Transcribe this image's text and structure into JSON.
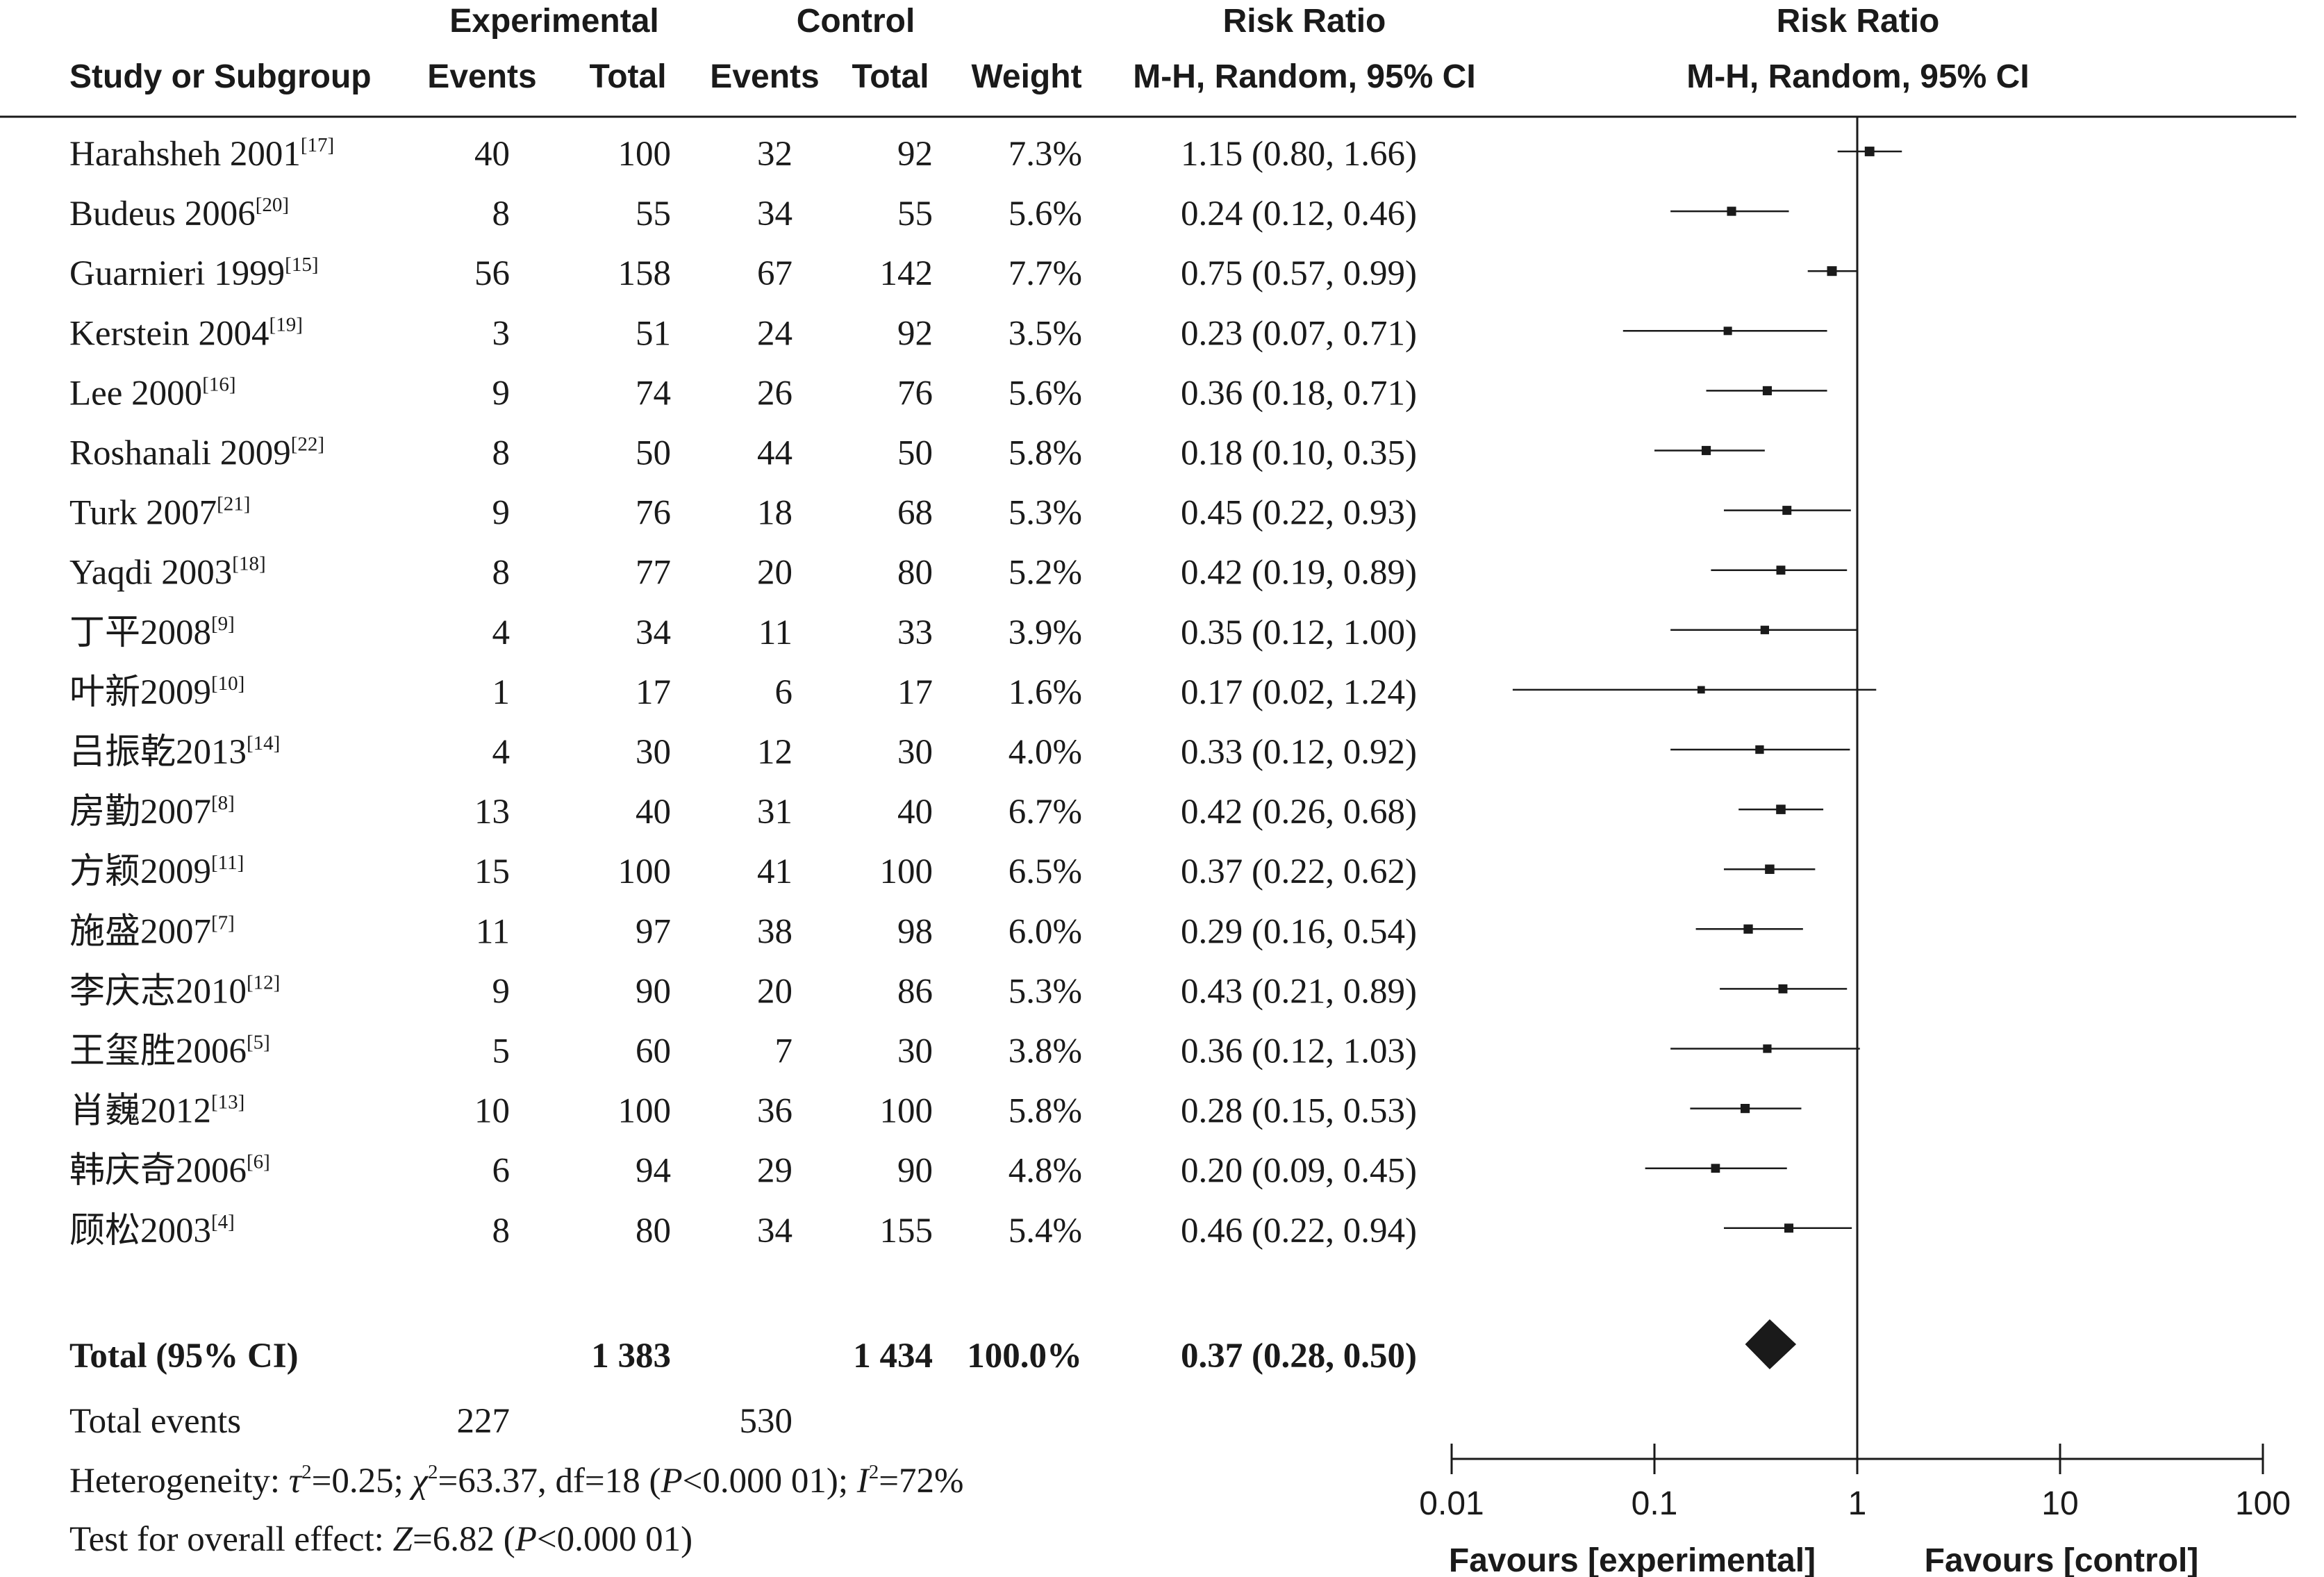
{
  "headers": {
    "group_experimental": "Experimental",
    "group_control": "Control",
    "group_rr_table": "Risk Ratio",
    "group_rr_plot": "Risk Ratio",
    "study": "Study or Subgroup",
    "exp_events": "Events",
    "exp_total": "Total",
    "ctl_events": "Events",
    "ctl_total": "Total",
    "weight": "Weight",
    "method_table": "M-H, Random, 95% CI",
    "method_plot": "M-H, Random, 95% CI"
  },
  "chart_data": {
    "type": "forest",
    "scale": "log",
    "xlim": [
      0.01,
      100
    ],
    "xticks": [
      "0.01",
      "0.1",
      "1",
      "10",
      "100"
    ],
    "x_left_label": "Favours [experimental]",
    "x_right_label": "Favours [control]",
    "studies": [
      {
        "name": "Harahsheh 2001",
        "ref": "[17]",
        "exp_events": "40",
        "exp_total": "100",
        "ctl_events": "32",
        "ctl_total": "92",
        "weight": "7.3%",
        "ci_text": "1.15 (0.80, 1.66)",
        "rr": 1.15,
        "lo": 0.8,
        "hi": 1.66
      },
      {
        "name": "Budeus 2006",
        "ref": "[20]",
        "exp_events": "8",
        "exp_total": "55",
        "ctl_events": "34",
        "ctl_total": "55",
        "weight": "5.6%",
        "ci_text": "0.24 (0.12, 0.46)",
        "rr": 0.24,
        "lo": 0.12,
        "hi": 0.46
      },
      {
        "name": "Guarnieri 1999",
        "ref": "[15]",
        "exp_events": "56",
        "exp_total": "158",
        "ctl_events": "67",
        "ctl_total": "142",
        "weight": "7.7%",
        "ci_text": "0.75 (0.57, 0.99)",
        "rr": 0.75,
        "lo": 0.57,
        "hi": 0.99
      },
      {
        "name": "Kerstein 2004",
        "ref": "[19]",
        "exp_events": "3",
        "exp_total": "51",
        "ctl_events": "24",
        "ctl_total": "92",
        "weight": "3.5%",
        "ci_text": "0.23 (0.07, 0.71)",
        "rr": 0.23,
        "lo": 0.07,
        "hi": 0.71
      },
      {
        "name": "Lee 2000",
        "ref": "[16]",
        "exp_events": "9",
        "exp_total": "74",
        "ctl_events": "26",
        "ctl_total": "76",
        "weight": "5.6%",
        "ci_text": "0.36 (0.18, 0.71)",
        "rr": 0.36,
        "lo": 0.18,
        "hi": 0.71
      },
      {
        "name": "Roshanali 2009",
        "ref": "[22]",
        "exp_events": "8",
        "exp_total": "50",
        "ctl_events": "44",
        "ctl_total": "50",
        "weight": "5.8%",
        "ci_text": "0.18 (0.10, 0.35)",
        "rr": 0.18,
        "lo": 0.1,
        "hi": 0.35
      },
      {
        "name": "Turk 2007",
        "ref": "[21]",
        "exp_events": "9",
        "exp_total": "76",
        "ctl_events": "18",
        "ctl_total": "68",
        "weight": "5.3%",
        "ci_text": "0.45 (0.22, 0.93)",
        "rr": 0.45,
        "lo": 0.22,
        "hi": 0.93
      },
      {
        "name": "Yaqdi 2003",
        "ref": "[18]",
        "exp_events": "8",
        "exp_total": "77",
        "ctl_events": "20",
        "ctl_total": "80",
        "weight": "5.2%",
        "ci_text": "0.42 (0.19, 0.89)",
        "rr": 0.42,
        "lo": 0.19,
        "hi": 0.89
      },
      {
        "name": "丁平2008",
        "ref": "[9]",
        "exp_events": "4",
        "exp_total": "34",
        "ctl_events": "11",
        "ctl_total": "33",
        "weight": "3.9%",
        "ci_text": "0.35 (0.12, 1.00)",
        "rr": 0.35,
        "lo": 0.12,
        "hi": 1.0
      },
      {
        "name": "叶新2009",
        "ref": "[10]",
        "exp_events": "1",
        "exp_total": "17",
        "ctl_events": "6",
        "ctl_total": "17",
        "weight": "1.6%",
        "ci_text": "0.17 (0.02, 1.24)",
        "rr": 0.17,
        "lo": 0.02,
        "hi": 1.24
      },
      {
        "name": "吕振乾2013",
        "ref": "[14]",
        "exp_events": "4",
        "exp_total": "30",
        "ctl_events": "12",
        "ctl_total": "30",
        "weight": "4.0%",
        "ci_text": "0.33 (0.12, 0.92)",
        "rr": 0.33,
        "lo": 0.12,
        "hi": 0.92
      },
      {
        "name": "房勤2007",
        "ref": "[8]",
        "exp_events": "13",
        "exp_total": "40",
        "ctl_events": "31",
        "ctl_total": "40",
        "weight": "6.7%",
        "ci_text": "0.42 (0.26, 0.68)",
        "rr": 0.42,
        "lo": 0.26,
        "hi": 0.68
      },
      {
        "name": "方颖2009",
        "ref": "[11]",
        "exp_events": "15",
        "exp_total": "100",
        "ctl_events": "41",
        "ctl_total": "100",
        "weight": "6.5%",
        "ci_text": "0.37 (0.22, 0.62)",
        "rr": 0.37,
        "lo": 0.22,
        "hi": 0.62
      },
      {
        "name": "施盛2007",
        "ref": "[7]",
        "exp_events": "11",
        "exp_total": "97",
        "ctl_events": "38",
        "ctl_total": "98",
        "weight": "6.0%",
        "ci_text": "0.29 (0.16, 0.54)",
        "rr": 0.29,
        "lo": 0.16,
        "hi": 0.54
      },
      {
        "name": "李庆志2010",
        "ref": "[12]",
        "exp_events": "9",
        "exp_total": "90",
        "ctl_events": "20",
        "ctl_total": "86",
        "weight": "5.3%",
        "ci_text": "0.43 (0.21, 0.89)",
        "rr": 0.43,
        "lo": 0.21,
        "hi": 0.89
      },
      {
        "name": "王玺胜2006",
        "ref": "[5]",
        "exp_events": "5",
        "exp_total": "60",
        "ctl_events": "7",
        "ctl_total": "30",
        "weight": "3.8%",
        "ci_text": "0.36 (0.12, 1.03)",
        "rr": 0.36,
        "lo": 0.12,
        "hi": 1.03
      },
      {
        "name": "肖巍2012",
        "ref": "[13]",
        "exp_events": "10",
        "exp_total": "100",
        "ctl_events": "36",
        "ctl_total": "100",
        "weight": "5.8%",
        "ci_text": "0.28 (0.15, 0.53)",
        "rr": 0.28,
        "lo": 0.15,
        "hi": 0.53
      },
      {
        "name": "韩庆奇2006",
        "ref": "[6]",
        "exp_events": "6",
        "exp_total": "94",
        "ctl_events": "29",
        "ctl_total": "90",
        "weight": "4.8%",
        "ci_text": "0.20 (0.09, 0.45)",
        "rr": 0.2,
        "lo": 0.09,
        "hi": 0.45
      },
      {
        "name": "顾松2003",
        "ref": "[4]",
        "exp_events": "8",
        "exp_total": "80",
        "ctl_events": "34",
        "ctl_total": "155",
        "weight": "5.4%",
        "ci_text": "0.46 (0.22, 0.94)",
        "rr": 0.46,
        "lo": 0.22,
        "hi": 0.94
      }
    ],
    "total": {
      "label": "Total (95% CI)",
      "exp_total": "1 383",
      "ctl_total": "1 434",
      "weight": "100.0%",
      "ci_text": "0.37 (0.28, 0.50)",
      "rr": 0.37,
      "lo": 0.28,
      "hi": 0.5
    },
    "total_events": {
      "label": "Total events",
      "exp": "227",
      "ctl": "530"
    },
    "heterogeneity": {
      "label": "Heterogeneity: ",
      "tau2": "τ",
      "tau2_value": "=0.25; ",
      "chi2": "χ",
      "chi2_value": "=63.37, df=18 (",
      "p": "P",
      "p_value": "<0.000 01); ",
      "i2": "I",
      "i2_value": "=72%",
      "sq": "2"
    },
    "overall_effect": {
      "label": "Test for overall effect: ",
      "z": "Z",
      "z_value": "=6.82 (",
      "p": "P",
      "p_value": "<0.000 01)"
    }
  }
}
